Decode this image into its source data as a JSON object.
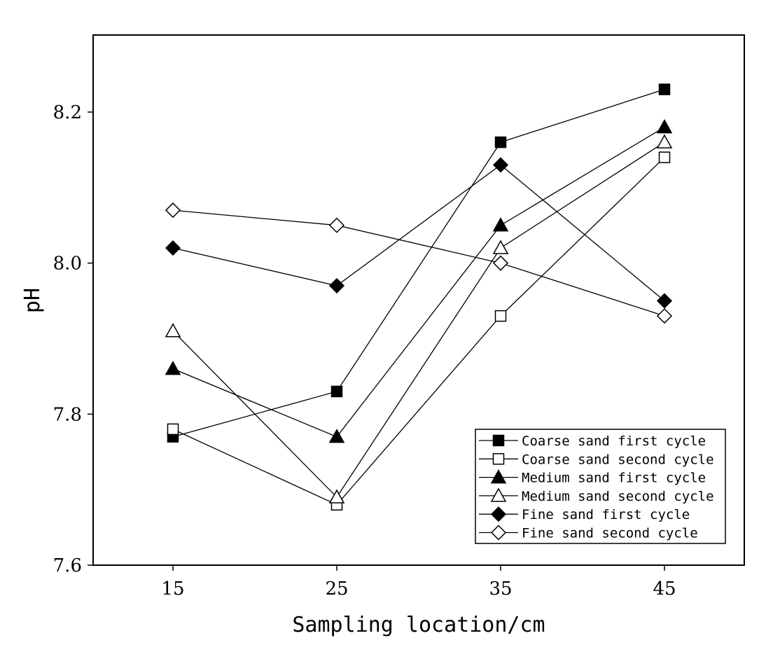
{
  "chart_data": {
    "type": "line",
    "title": "",
    "xlabel": "Sampling location/cm",
    "ylabel": "pH",
    "x": [
      15,
      25,
      35,
      45
    ],
    "xticks": [
      "15",
      "25",
      "35",
      "45"
    ],
    "yticks": [
      "7.6",
      "7.8",
      "8.0",
      "8.2"
    ],
    "ylim": [
      7.6,
      8.3
    ],
    "legend_position": "bottom-right",
    "grid": false,
    "series": [
      {
        "name": "Coarse sand first cycle",
        "marker": "square",
        "filled": true,
        "values": [
          7.77,
          7.83,
          8.16,
          8.23
        ]
      },
      {
        "name": "Coarse sand second cycle",
        "marker": "square",
        "filled": false,
        "values": [
          7.78,
          7.68,
          7.93,
          8.14
        ]
      },
      {
        "name": "Medium sand first cycle",
        "marker": "triangle",
        "filled": true,
        "values": [
          7.86,
          7.77,
          8.05,
          8.18
        ]
      },
      {
        "name": "Medium sand second cycle",
        "marker": "triangle",
        "filled": false,
        "values": [
          7.91,
          7.69,
          8.02,
          8.16
        ]
      },
      {
        "name": "Fine sand first cycle",
        "marker": "diamond",
        "filled": true,
        "values": [
          8.02,
          7.97,
          8.13,
          7.95
        ]
      },
      {
        "name": "Fine sand second cycle",
        "marker": "diamond",
        "filled": false,
        "values": [
          8.07,
          8.05,
          8.0,
          7.93
        ]
      }
    ]
  }
}
